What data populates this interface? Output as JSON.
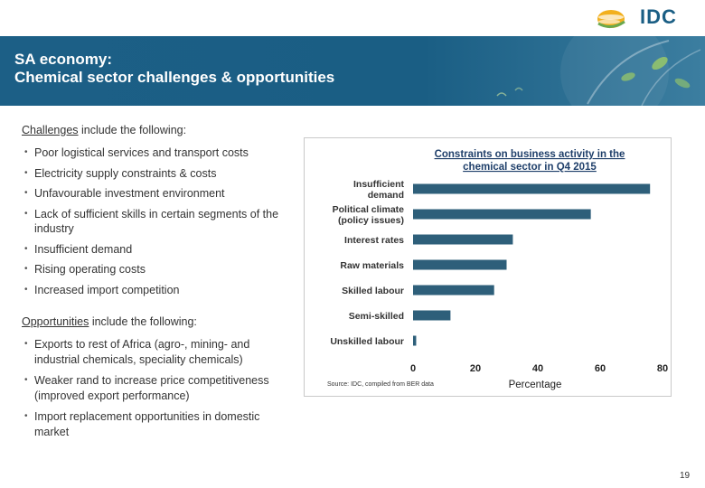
{
  "header": {
    "logo_text": "IDC",
    "title_line1": "SA economy:",
    "title_line2": "Chemical sector challenges  & opportunities"
  },
  "challenges": {
    "heading_label": "Challenges",
    "heading_rest": " include the following:",
    "items": [
      "Poor logistical services and transport costs",
      "Electricity supply constraints & costs",
      "Unfavourable investment environment",
      "Lack of sufficient skills in certain segments of the industry",
      "Insufficient demand",
      "Rising operating costs",
      "Increased import competition"
    ]
  },
  "opportunities": {
    "heading_label": "Opportunities",
    "heading_rest": " include the following:",
    "items": [
      "Exports to rest of Africa (agro-, mining- and industrial chemicals, speciality chemicals)",
      "Weaker rand to increase price competitiveness (improved export performance)",
      "Import replacement opportunities in domestic market"
    ]
  },
  "chart_data": {
    "type": "bar",
    "orientation": "horizontal",
    "title_line1": "Constraints on business activity in the",
    "title_line2": "chemical sector in Q4 2015",
    "categories": [
      [
        "Insufficient",
        "demand"
      ],
      [
        "Political climate",
        "(policy issues)"
      ],
      [
        "Interest rates"
      ],
      [
        "Raw materials"
      ],
      [
        "Skilled labour"
      ],
      [
        "Semi-skilled"
      ],
      [
        "Unskilled labour"
      ]
    ],
    "values": [
      76,
      57,
      32,
      30,
      26,
      12,
      1
    ],
    "xlabel": "Percentage",
    "ylabel": "",
    "xlim": [
      0,
      80
    ],
    "xticks": [
      "0",
      "20",
      "40",
      "60",
      "80"
    ],
    "source": "Source: IDC, compiled from BER data",
    "bar_color": "#2e5f7a",
    "grid": false
  },
  "footer": {
    "page_number": "19"
  }
}
